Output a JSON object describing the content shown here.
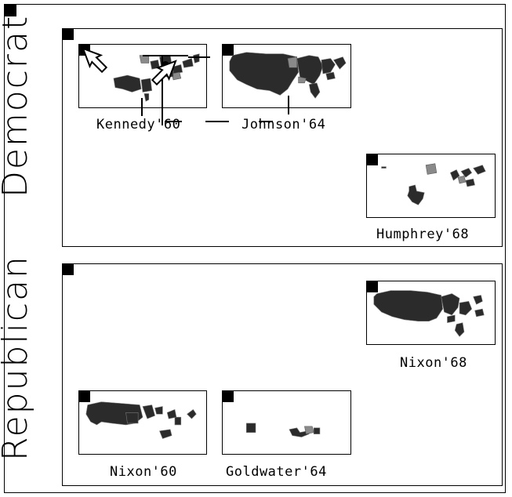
{
  "groups": {
    "democrat": {
      "label": "Democrat",
      "maps": [
        {
          "caption": "Kennedy'60"
        },
        {
          "caption": "Johnson'64"
        },
        {
          "caption": "Humphrey'68"
        }
      ]
    },
    "republican": {
      "label": "Republican",
      "maps": [
        {
          "caption": "Nixon'68"
        },
        {
          "caption": "Nixon'60"
        },
        {
          "caption": "Goldwater'64"
        }
      ]
    }
  },
  "colors": {
    "won_state": "#2b2b2b",
    "split_state": "#8a8a8a",
    "frame": "#000000"
  },
  "icons": [
    "move-handle-icon",
    "arrow-cursor-icon"
  ]
}
